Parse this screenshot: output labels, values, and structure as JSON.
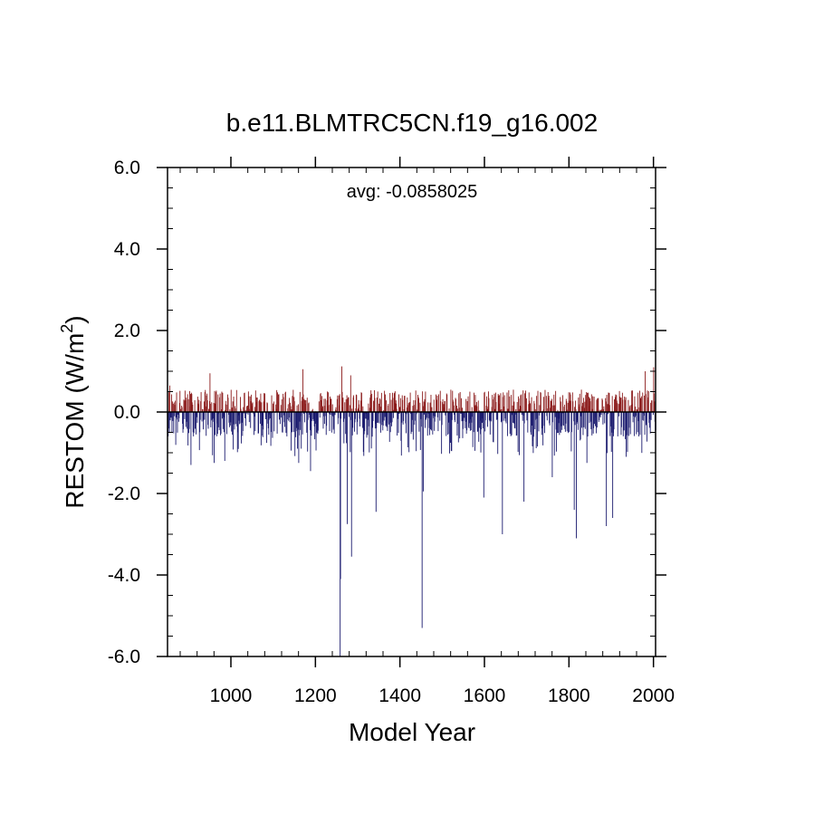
{
  "chart_data": {
    "type": "bar",
    "title": "b.e11.BLMTRC5CN.f19_g16.002",
    "xlabel": "Model Year",
    "ylabel": "RESTOM (W/m",
    "ylabel_superscript": "2",
    "ylabel_suffix": ")",
    "annotation": "avg: -0.0858025",
    "xlim": [
      850,
      2005
    ],
    "ylim": [
      -6.0,
      6.0
    ],
    "x_ticks": [
      1000,
      1200,
      1400,
      1600,
      1800,
      2000
    ],
    "x_tick_labels": [
      "1000",
      "1200",
      "1400",
      "1600",
      "1800",
      "2000"
    ],
    "y_ticks": [
      6.0,
      4.0,
      2.0,
      0.0,
      -2.0,
      -4.0,
      -6.0
    ],
    "y_tick_labels": [
      "6.0",
      "4.0",
      "2.0",
      "0.0",
      "-2.0",
      "-4.0",
      "-6.0"
    ],
    "x_start": 850,
    "x_end": 2005,
    "positive_color": "#8b1a1a",
    "negative_color": "#1a1a6e",
    "notable_values": [
      {
        "x": 855,
        "y": 0.65
      },
      {
        "x": 950,
        "y": 0.95
      },
      {
        "x": 1170,
        "y": 1.05
      },
      {
        "x": 1262,
        "y": 1.12
      },
      {
        "x": 1283,
        "y": 0.9
      },
      {
        "x": 1980,
        "y": 1.0
      },
      {
        "x": 2000,
        "y": 1.1
      },
      {
        "x": 905,
        "y": -1.3
      },
      {
        "x": 960,
        "y": -1.25
      },
      {
        "x": 985,
        "y": -1.2
      },
      {
        "x": 1160,
        "y": -1.25
      },
      {
        "x": 1188,
        "y": -1.45
      },
      {
        "x": 1258,
        "y": -6.0
      },
      {
        "x": 1259,
        "y": -4.1
      },
      {
        "x": 1275,
        "y": -2.75
      },
      {
        "x": 1285,
        "y": -3.55
      },
      {
        "x": 1343,
        "y": -2.45
      },
      {
        "x": 1452,
        "y": -5.3
      },
      {
        "x": 1455,
        "y": -1.95
      },
      {
        "x": 1598,
        "y": -2.1
      },
      {
        "x": 1642,
        "y": -3.0
      },
      {
        "x": 1693,
        "y": -2.2
      },
      {
        "x": 1760,
        "y": -1.6
      },
      {
        "x": 1812,
        "y": -2.4
      },
      {
        "x": 1817,
        "y": -3.1
      },
      {
        "x": 1842,
        "y": -1.25
      },
      {
        "x": 1888,
        "y": -2.8
      },
      {
        "x": 1903,
        "y": -2.6
      },
      {
        "x": 1935,
        "y": -1.1
      }
    ]
  }
}
